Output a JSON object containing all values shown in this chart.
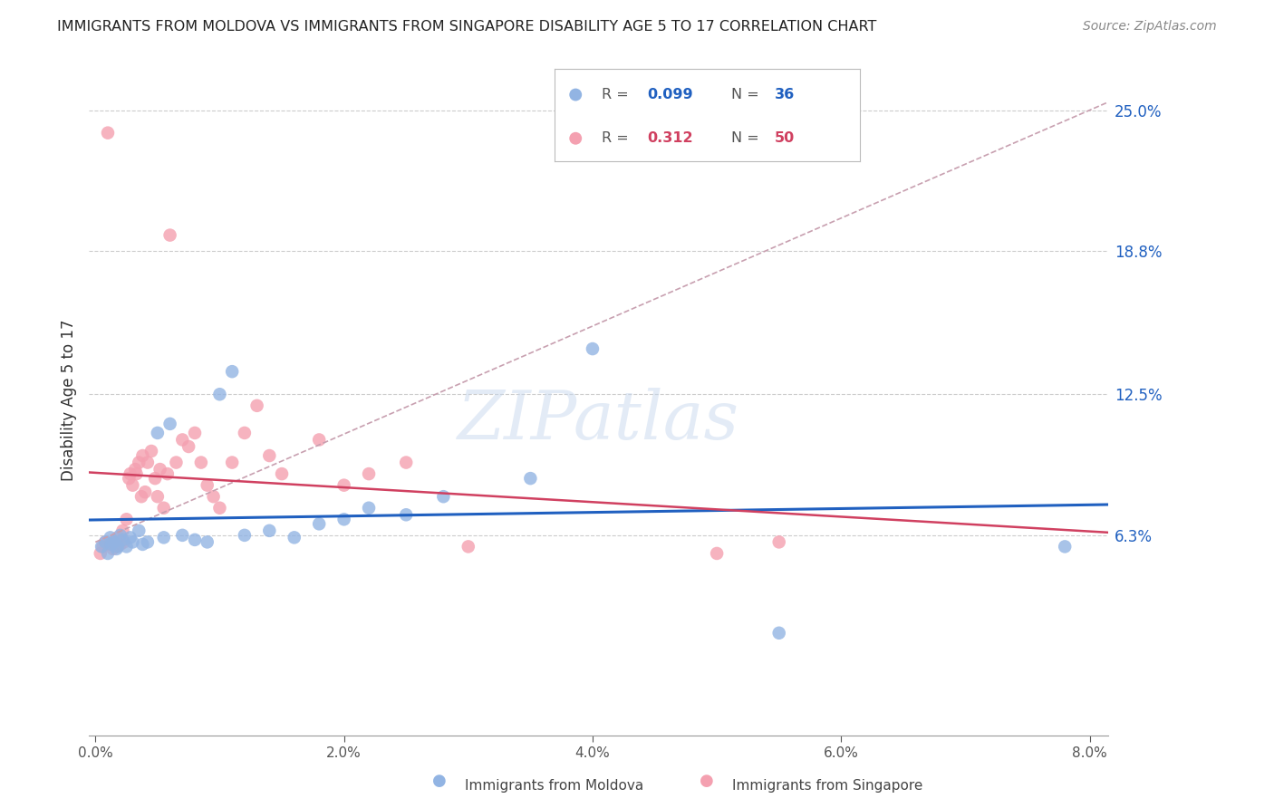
{
  "title": "IMMIGRANTS FROM MOLDOVA VS IMMIGRANTS FROM SINGAPORE DISABILITY AGE 5 TO 17 CORRELATION CHART",
  "source": "Source: ZipAtlas.com",
  "ylabel": "Disability Age 5 to 17",
  "xlim": [
    0.0,
    8.0
  ],
  "ylim": [
    -2.5,
    27.0
  ],
  "yticks": [
    6.3,
    12.5,
    18.8,
    25.0
  ],
  "ytick_labels": [
    "6.3%",
    "12.5%",
    "18.8%",
    "25.0%"
  ],
  "xtick_labels": [
    "0.0%",
    "2.0%",
    "4.0%",
    "6.0%",
    "8.0%"
  ],
  "xticks": [
    0.0,
    2.0,
    4.0,
    6.0,
    8.0
  ],
  "moldova_color": "#92b4e3",
  "singapore_color": "#f4a0b0",
  "moldova_R": 0.099,
  "moldova_N": 36,
  "singapore_R": 0.312,
  "singapore_N": 50,
  "blue_line_color": "#2060c0",
  "pink_line_color": "#d04060",
  "pink_dash_color": "#c8a0b0",
  "watermark": "ZIPatlas",
  "background_color": "#ffffff",
  "grid_color": "#cccccc",
  "moldova_x": [
    0.05,
    0.08,
    0.1,
    0.12,
    0.13,
    0.15,
    0.17,
    0.18,
    0.2,
    0.22,
    0.25,
    0.28,
    0.3,
    0.35,
    0.38,
    0.42,
    0.5,
    0.55,
    0.6,
    0.7,
    0.8,
    0.9,
    1.0,
    1.1,
    1.2,
    1.4,
    1.6,
    1.8,
    2.0,
    2.2,
    2.5,
    2.8,
    3.5,
    4.0,
    5.5,
    7.8
  ],
  "moldova_y": [
    5.8,
    6.0,
    5.5,
    6.2,
    5.9,
    6.0,
    5.7,
    5.8,
    6.3,
    6.1,
    5.8,
    6.2,
    6.0,
    6.5,
    5.9,
    6.0,
    10.8,
    6.2,
    11.2,
    6.3,
    6.1,
    6.0,
    12.5,
    13.5,
    6.3,
    6.5,
    6.2,
    6.8,
    7.0,
    7.5,
    7.2,
    8.0,
    8.8,
    14.5,
    2.0,
    5.8
  ],
  "singapore_x": [
    0.04,
    0.06,
    0.08,
    0.1,
    0.12,
    0.14,
    0.15,
    0.17,
    0.18,
    0.2,
    0.22,
    0.23,
    0.25,
    0.27,
    0.28,
    0.3,
    0.32,
    0.33,
    0.35,
    0.37,
    0.38,
    0.4,
    0.42,
    0.45,
    0.48,
    0.5,
    0.52,
    0.55,
    0.58,
    0.6,
    0.65,
    0.7,
    0.75,
    0.8,
    0.85,
    0.9,
    0.95,
    1.0,
    1.1,
    1.2,
    1.3,
    1.4,
    1.5,
    1.8,
    2.0,
    2.2,
    2.5,
    3.0,
    5.0,
    5.5
  ],
  "singapore_y": [
    5.5,
    5.8,
    6.0,
    24.0,
    5.9,
    5.7,
    6.0,
    5.8,
    6.2,
    5.9,
    6.5,
    6.0,
    7.0,
    8.8,
    9.0,
    8.5,
    9.2,
    9.0,
    9.5,
    8.0,
    9.8,
    8.2,
    9.5,
    10.0,
    8.8,
    8.0,
    9.2,
    7.5,
    9.0,
    19.5,
    9.5,
    10.5,
    10.2,
    10.8,
    9.5,
    8.5,
    8.0,
    7.5,
    9.5,
    10.8,
    12.0,
    9.8,
    9.0,
    10.5,
    8.5,
    9.0,
    9.5,
    5.8,
    5.5,
    6.0
  ]
}
